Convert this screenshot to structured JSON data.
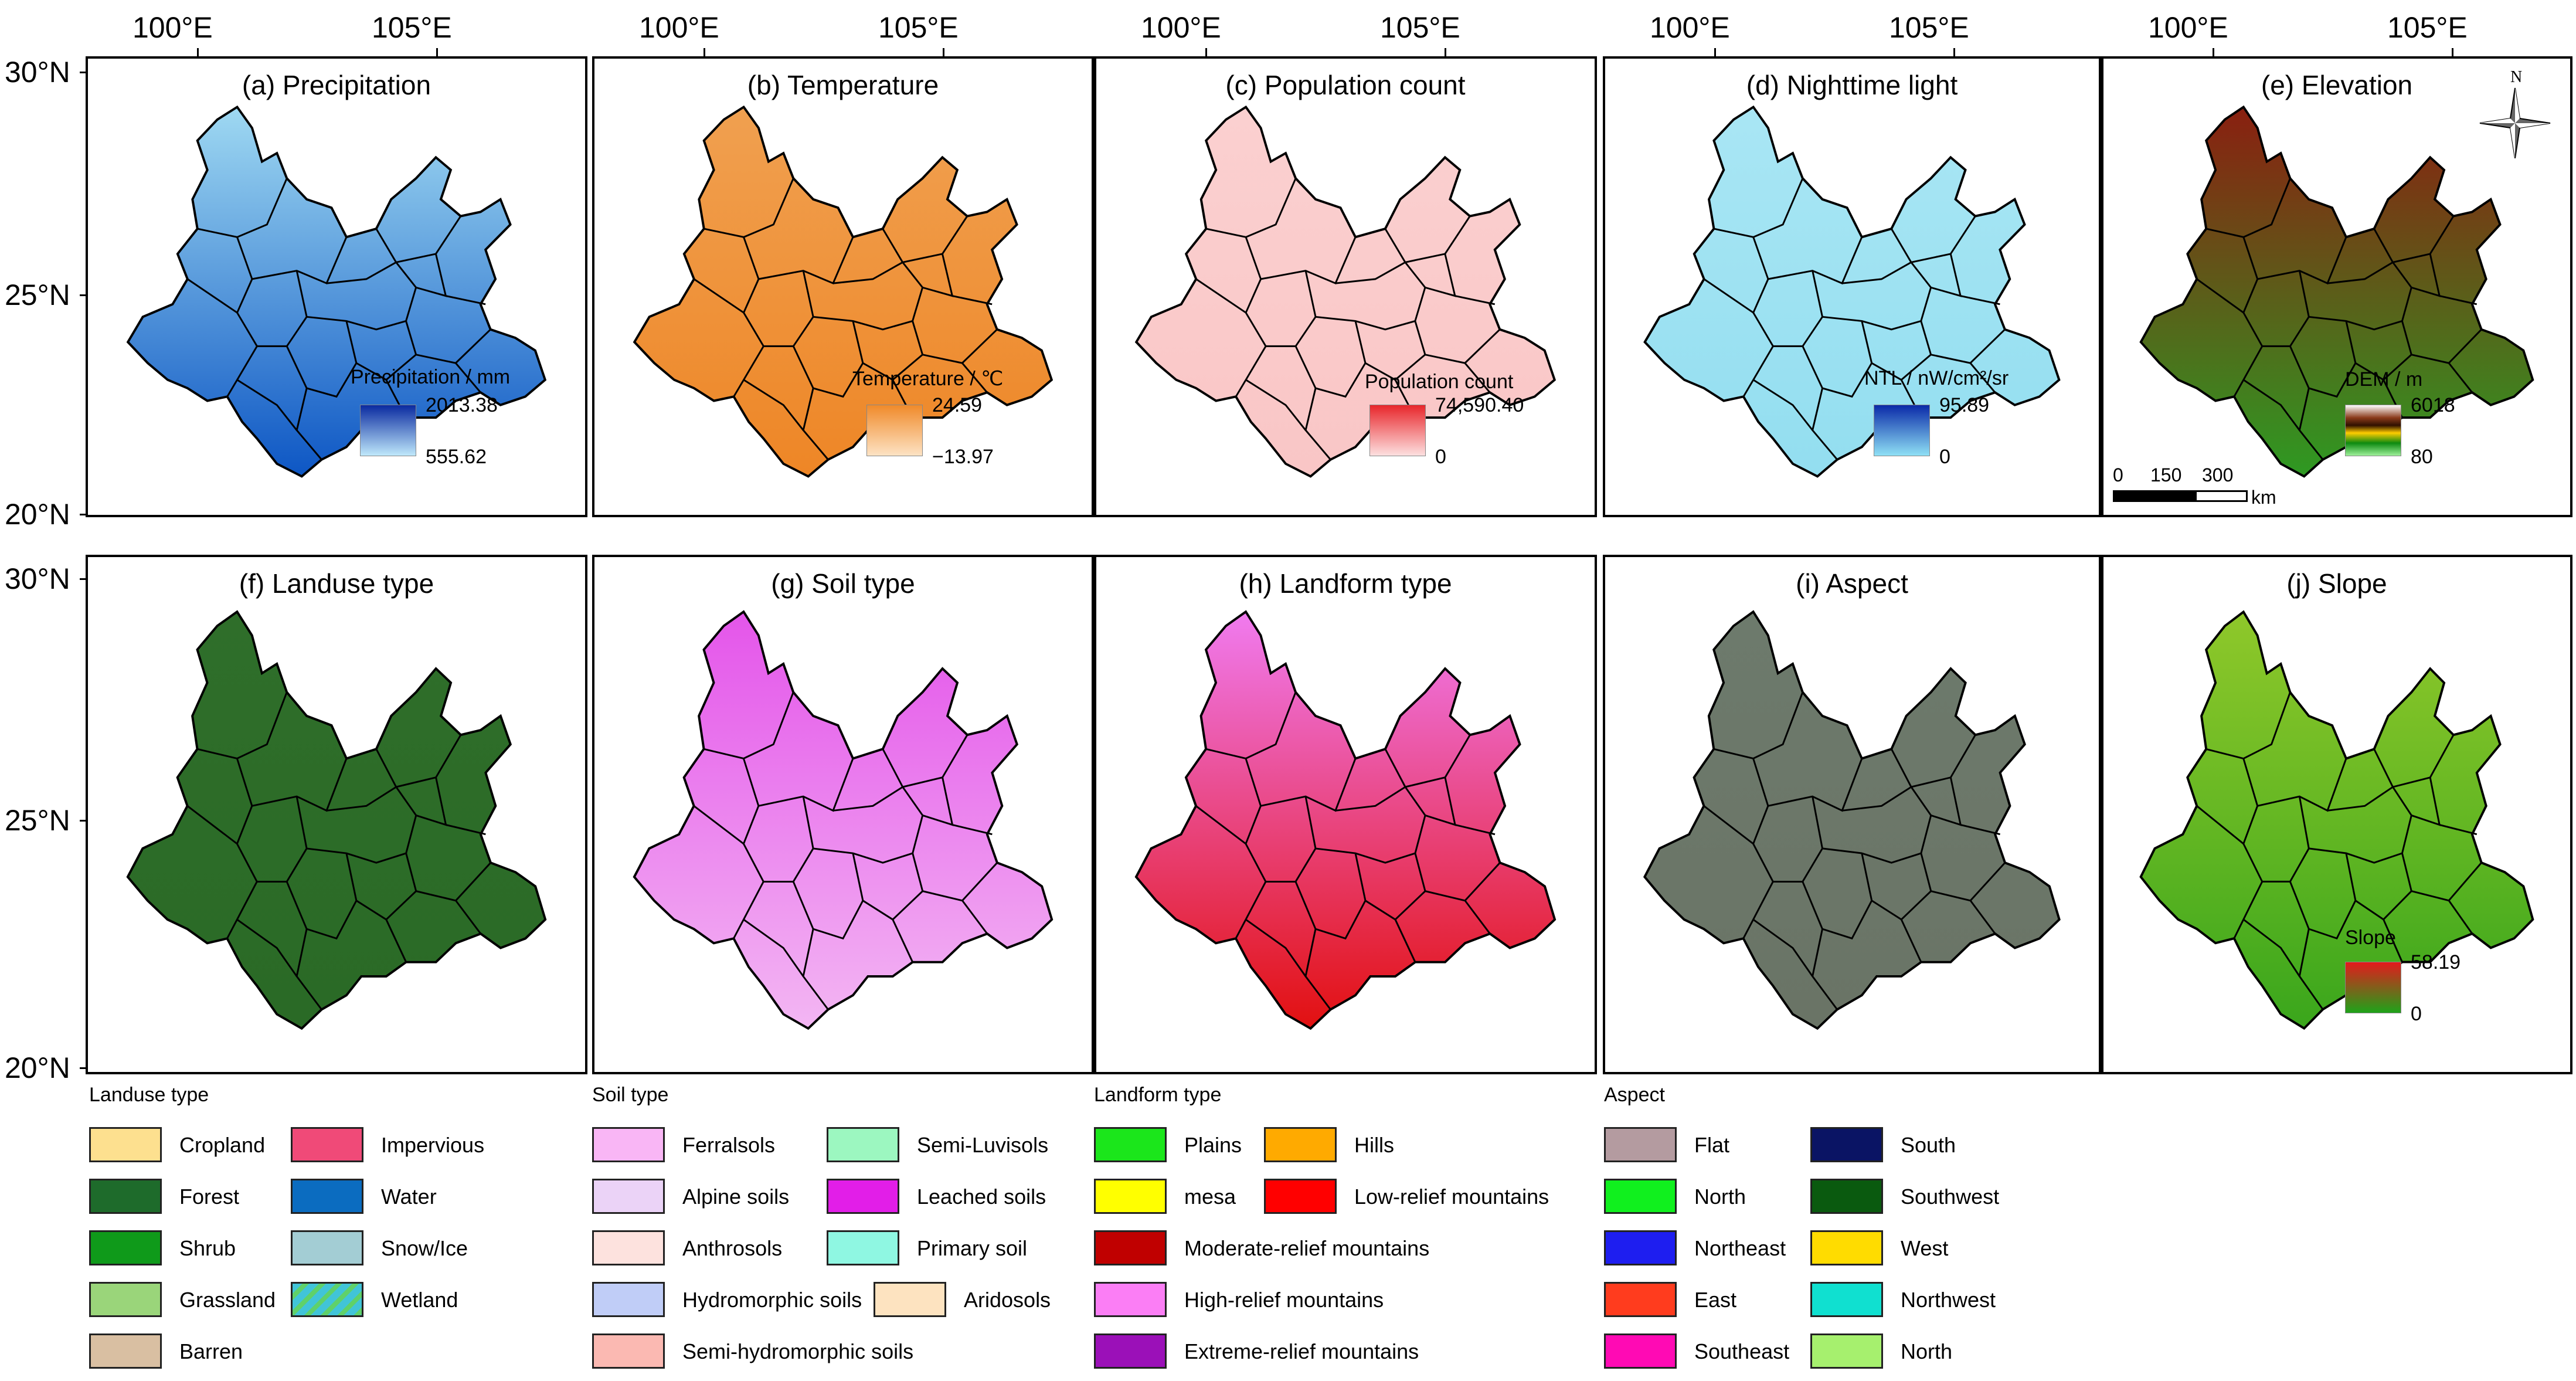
{
  "axes": {
    "lon_labels": [
      "100°E",
      "105°E"
    ],
    "lat_labels_row1": [
      "30°N",
      "25°N",
      "20°N"
    ],
    "lat_labels_row2": [
      "30°N",
      "25°N",
      "20°N"
    ]
  },
  "panels": [
    {
      "id": "a",
      "title": "(a) Precipitation",
      "map": {
        "fill_top": "#9fd9f2",
        "fill_bottom": "#0d56c4"
      },
      "colorbar": {
        "title": "Precipitation / mm",
        "max": "2013.38",
        "min": "555.62",
        "top_color": "#0a2aa0",
        "bottom_color": "#bfe8fb"
      }
    },
    {
      "id": "b",
      "title": "(b) Temperature",
      "map": {
        "fill_top": "#f0a050",
        "fill_bottom": "#ee8626"
      },
      "colorbar": {
        "title": "Temperature / ℃",
        "max": "24.59",
        "min": "−13.97",
        "top_color": "#f08a2a",
        "bottom_color": "#fde3c4"
      }
    },
    {
      "id": "c",
      "title": "(c) Population count",
      "map": {
        "fill_top": "#fbd0d0",
        "fill_bottom": "#f9c6c6"
      },
      "colorbar": {
        "title": "Population count",
        "max": "74,590.40",
        "min": "0",
        "top_color": "#e8262b",
        "bottom_color": "#fde0e0"
      }
    },
    {
      "id": "d",
      "title": "(d) Nighttime light",
      "map": {
        "fill_top": "#a9e6f4",
        "fill_bottom": "#93def0"
      },
      "colorbar": {
        "title": "NTL /  nW/cm²/sr",
        "max": "95.89",
        "min": "0",
        "top_color": "#0a2aa8",
        "bottom_color": "#8fe0f5"
      }
    },
    {
      "id": "e",
      "title": "(e) Elevation",
      "map": {
        "fill_top": "#8a1f10",
        "fill_bottom": "#2e9a22"
      },
      "colorbar": {
        "title": "DEM / m",
        "max": "6018",
        "min": "80",
        "top_color": "#ffffff",
        "bottom_color": "#9ef09a"
      },
      "north_label": "N",
      "scalebar": {
        "ticks": [
          "0",
          "150",
          "300"
        ],
        "unit": "km"
      }
    },
    {
      "id": "f",
      "title": "(f) Landuse type",
      "map": {
        "fill_top": "#2f6e2a",
        "fill_bottom": "#2a6a26"
      }
    },
    {
      "id": "g",
      "title": "(g) Soil type",
      "map": {
        "fill_top": "#e455ea",
        "fill_bottom": "#f3b6f3"
      }
    },
    {
      "id": "h",
      "title": "(h) Landform type",
      "map": {
        "fill_top": "#f07bf0",
        "fill_bottom": "#e21010"
      }
    },
    {
      "id": "i",
      "title": "(i) Aspect",
      "map": {
        "fill_top": "#6d7a6c",
        "fill_bottom": "#6a7466"
      }
    },
    {
      "id": "j",
      "title": "(j) Slope",
      "map": {
        "fill_top": "#8fc82a",
        "fill_bottom": "#3aa61c"
      },
      "colorbar": {
        "title": "Slope",
        "max": "58.19",
        "min": "0",
        "top_color": "#e31a1c",
        "bottom_color": "#1fa31a"
      }
    }
  ],
  "legends": [
    {
      "title": "Landuse type",
      "columns": [
        [
          {
            "label": "Cropland",
            "color": "#fde08f"
          },
          {
            "label": "Forest",
            "color": "#1e6b2b"
          },
          {
            "label": "Shrub",
            "color": "#0f9a1a"
          },
          {
            "label": "Grassland",
            "color": "#9ad57a"
          },
          {
            "label": "Barren",
            "color": "#d9bfa2"
          }
        ],
        [
          {
            "label": "Impervious",
            "color": "#f04a78"
          },
          {
            "label": "Water",
            "color": "#0b6cc0"
          },
          {
            "label": "Snow/Ice",
            "color": "#a3cdd4"
          },
          {
            "label": "Wetland",
            "color": "#41c4d8",
            "pattern": "hatch"
          }
        ]
      ]
    },
    {
      "title": "Soil type",
      "columns": [
        [
          {
            "label": "Ferralsols",
            "color": "#f9b6f5"
          },
          {
            "label": "Alpine soils",
            "color": "#ebd3f7"
          },
          {
            "label": "Anthrosols",
            "color": "#fde2de"
          },
          {
            "label": "Hydromorphic soils",
            "color": "#c0cdf7"
          },
          {
            "label": "Semi-hydromorphic soils",
            "color": "#fbb9b2"
          }
        ],
        [
          {
            "label": "Semi-Luvisols",
            "color": "#9cf7c0"
          },
          {
            "label": "Leached soils",
            "color": "#e21ee8"
          },
          {
            "label": "Primary soil",
            "color": "#8ff7e2"
          },
          {
            "label": "Aridosols",
            "color": "#fde3c0"
          }
        ]
      ]
    },
    {
      "title": "Landform type",
      "columns": [
        [
          {
            "label": "Plains",
            "color": "#1be61b"
          },
          {
            "label": "mesa",
            "color": "#ffff00"
          },
          {
            "label": "Moderate-relief mountains",
            "color": "#c00000"
          },
          {
            "label": "High-relief mountains",
            "color": "#fb7ef5"
          },
          {
            "label": "Extreme-relief mountains",
            "color": "#9b10b8"
          }
        ],
        [
          {
            "label": "Hills",
            "color": "#ffaa00"
          },
          {
            "label": "Low-relief mountains",
            "color": "#ff0000"
          }
        ]
      ]
    },
    {
      "title": "Aspect",
      "columns": [
        [
          {
            "label": "Flat",
            "color": "#b49ba0"
          },
          {
            "label": "North",
            "color": "#10f01e"
          },
          {
            "label": "Northeast",
            "color": "#1e1ef0"
          },
          {
            "label": "East",
            "color": "#ff3c1e"
          },
          {
            "label": "Southeast",
            "color": "#ff0ab4"
          }
        ],
        [
          {
            "label": "South",
            "color": "#0a1464"
          },
          {
            "label": "Southwest",
            "color": "#0a5a0f"
          },
          {
            "label": "West",
            "color": "#ffdc00"
          },
          {
            "label": "Northwest",
            "color": "#10e0d0"
          },
          {
            "label": "North",
            "color": "#a6f06e"
          }
        ]
      ]
    }
  ]
}
